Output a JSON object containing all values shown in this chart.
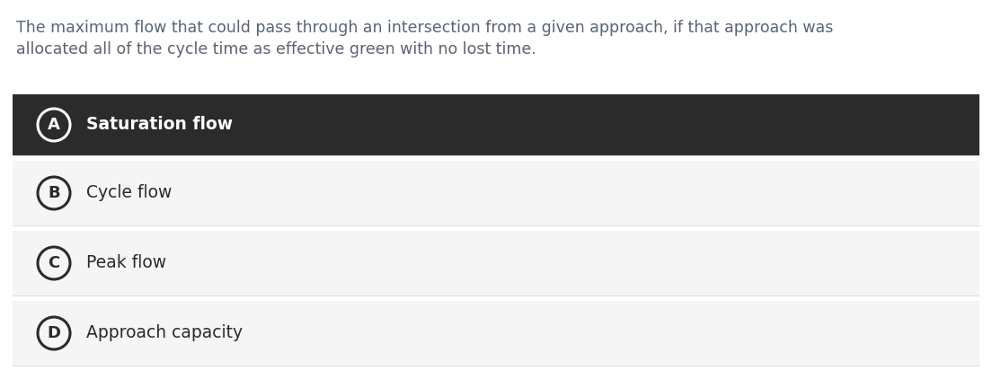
{
  "question_text_line1": "The maximum flow that could pass through an intersection from a given approach, if that approach was",
  "question_text_line2": "allocated all of the cycle time as effective green with no lost time.",
  "options": [
    {
      "label": "A",
      "text": "Saturation flow",
      "selected": true
    },
    {
      "label": "B",
      "text": "Cycle flow",
      "selected": false
    },
    {
      "label": "C",
      "text": "Peak flow",
      "selected": false
    },
    {
      "label": "D",
      "text": "Approach capacity",
      "selected": false
    }
  ],
  "bg_color": "#ffffff",
  "question_text_color": "#5a6472",
  "selected_bg": "#2b2b2b",
  "selected_text_color": "#ffffff",
  "selected_circle_fill": "#2b2b2b",
  "selected_circle_edge": "#ffffff",
  "unselected_bg": "#f5f5f5",
  "unselected_text_color": "#2b2b2b",
  "unselected_circle_fill": "#f5f5f5",
  "unselected_circle_edge": "#2b2b2b",
  "option_border_color": "#e0e0e0",
  "question_fontsize": 12.5,
  "option_fontsize": 13.5,
  "option_label_fontsize": 13.0
}
